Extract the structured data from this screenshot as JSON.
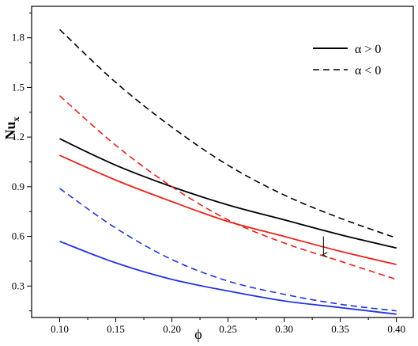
{
  "chart_data": {
    "type": "line",
    "xlabel": "ϕ",
    "ylabel_main": "Nu",
    "ylabel_sub": "x",
    "xlim": [
      0.075,
      0.415
    ],
    "ylim": [
      0.11,
      1.99
    ],
    "xticks": [
      0.1,
      0.15,
      0.2,
      0.25,
      0.3,
      0.35,
      0.4
    ],
    "xtick_labels": [
      "0.10",
      "0.15",
      "0.20",
      "0.25",
      "0.30",
      "0.35",
      "0.40"
    ],
    "yticks": [
      0.3,
      0.6,
      0.9,
      1.2,
      1.5,
      1.8
    ],
    "ytick_labels": [
      "0.3",
      "0.6",
      "0.9",
      "1.2",
      "1.5",
      "1.8"
    ],
    "grid": false,
    "legend": {
      "placement": "top-right",
      "entries": [
        {
          "label": "α > 0",
          "style": "solid"
        },
        {
          "label": "α < 0",
          "style": "dashed"
        }
      ]
    },
    "arrow": {
      "x": 0.335,
      "y_start": 0.6,
      "y_end": 0.47
    },
    "series": [
      {
        "color": "#000000",
        "style": "solid",
        "x": [
          0.1,
          0.15,
          0.2,
          0.25,
          0.3,
          0.35,
          0.4
        ],
        "y": [
          1.19,
          1.03,
          0.9,
          0.79,
          0.7,
          0.61,
          0.53
        ]
      },
      {
        "color": "#000000",
        "style": "dashed",
        "x": [
          0.1,
          0.15,
          0.2,
          0.25,
          0.3,
          0.35,
          0.4
        ],
        "y": [
          1.85,
          1.53,
          1.26,
          1.03,
          0.85,
          0.71,
          0.59
        ]
      },
      {
        "color": "#e8231a",
        "style": "solid",
        "x": [
          0.1,
          0.15,
          0.2,
          0.25,
          0.3,
          0.35,
          0.4
        ],
        "y": [
          1.09,
          0.94,
          0.81,
          0.69,
          0.6,
          0.51,
          0.43
        ]
      },
      {
        "color": "#e8231a",
        "style": "dashed",
        "x": [
          0.1,
          0.15,
          0.2,
          0.25,
          0.3,
          0.35,
          0.4
        ],
        "y": [
          1.45,
          1.15,
          0.9,
          0.7,
          0.56,
          0.45,
          0.34
        ]
      },
      {
        "color": "#2233dd",
        "style": "solid",
        "x": [
          0.1,
          0.15,
          0.2,
          0.25,
          0.3,
          0.35,
          0.4
        ],
        "y": [
          0.57,
          0.44,
          0.34,
          0.27,
          0.21,
          0.17,
          0.13
        ]
      },
      {
        "color": "#2233dd",
        "style": "dashed",
        "x": [
          0.1,
          0.15,
          0.2,
          0.25,
          0.3,
          0.35,
          0.4
        ],
        "y": [
          0.89,
          0.65,
          0.46,
          0.33,
          0.25,
          0.19,
          0.15
        ]
      }
    ]
  }
}
